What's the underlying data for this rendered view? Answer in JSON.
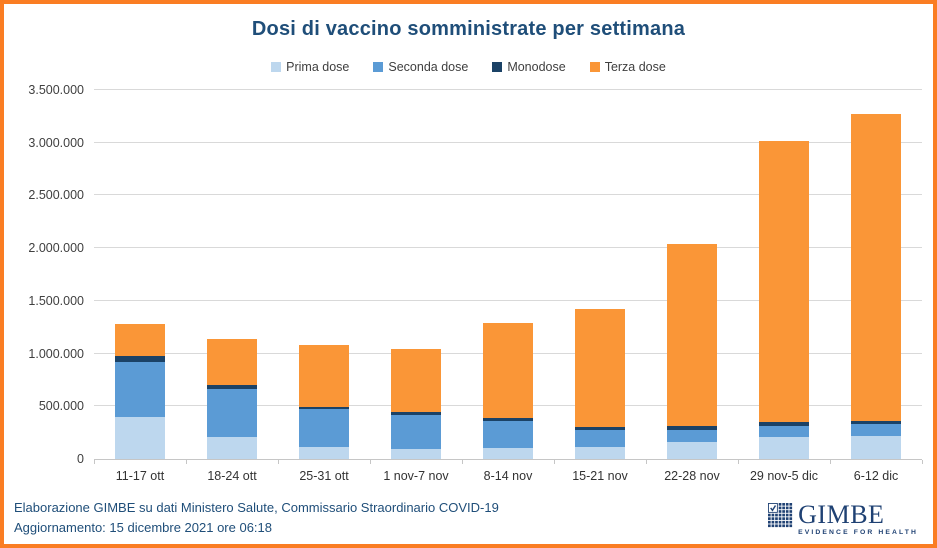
{
  "title": "Dosi di vaccino somministrate per settimana",
  "colors": {
    "frame_border": "#FA7D23",
    "title_text": "#1F4E79",
    "footer_text": "#1F4E79",
    "gridline": "#D9D9D9",
    "prima": "#BDD7EE",
    "seconda": "#5B9BD5",
    "monodose": "#1B4266",
    "terza": "#FA9637"
  },
  "chart_data": {
    "type": "bar",
    "stacked": true,
    "title": "Dosi di vaccino somministrate per settimana",
    "categories": [
      "11-17 ott",
      "18-24 ott",
      "25-31 ott",
      "1 nov-7 nov",
      "8-14 nov",
      "15-21 nov",
      "22-28 nov",
      "29 nov-5 dic",
      "6-12 dic"
    ],
    "series": [
      {
        "name": "Prima dose",
        "color": "#BDD7EE",
        "values": [
          400000,
          205000,
          115000,
          95000,
          100000,
          110000,
          160000,
          205000,
          220000
        ]
      },
      {
        "name": "Seconda dose",
        "color": "#5B9BD5",
        "values": [
          525000,
          460000,
          360000,
          325000,
          260000,
          165000,
          120000,
          110000,
          115000
        ]
      },
      {
        "name": "Monodose",
        "color": "#1B4266",
        "values": [
          55000,
          40000,
          20000,
          25000,
          25000,
          25000,
          30000,
          35000,
          25000
        ]
      },
      {
        "name": "Terza dose",
        "color": "#FA9637",
        "values": [
          300000,
          435000,
          590000,
          600000,
          905000,
          1125000,
          1730000,
          2670000,
          2915000
        ]
      }
    ],
    "totals": [
      1280000,
      1140000,
      1085000,
      1045000,
      1290000,
      1425000,
      2040000,
      3020000,
      3275000
    ],
    "ylim": [
      0,
      3500000
    ],
    "ytick_step": 500000,
    "ytick_labels": [
      "0",
      "500.000",
      "1.000.000",
      "1.500.000",
      "2.000.000",
      "2.500.000",
      "3.000.000",
      "3.500.000"
    ],
    "grid": true,
    "legend_position": "top"
  },
  "footer": {
    "line1": "Elaborazione GIMBE su dati Ministero Salute, Commissario Straordinario COVID-19",
    "line2": "Aggiornamento: 15 dicembre 2021 ore 06:18"
  },
  "logo": {
    "name": "GIMBE",
    "tagline": "EVIDENCE FOR HEALTH"
  }
}
